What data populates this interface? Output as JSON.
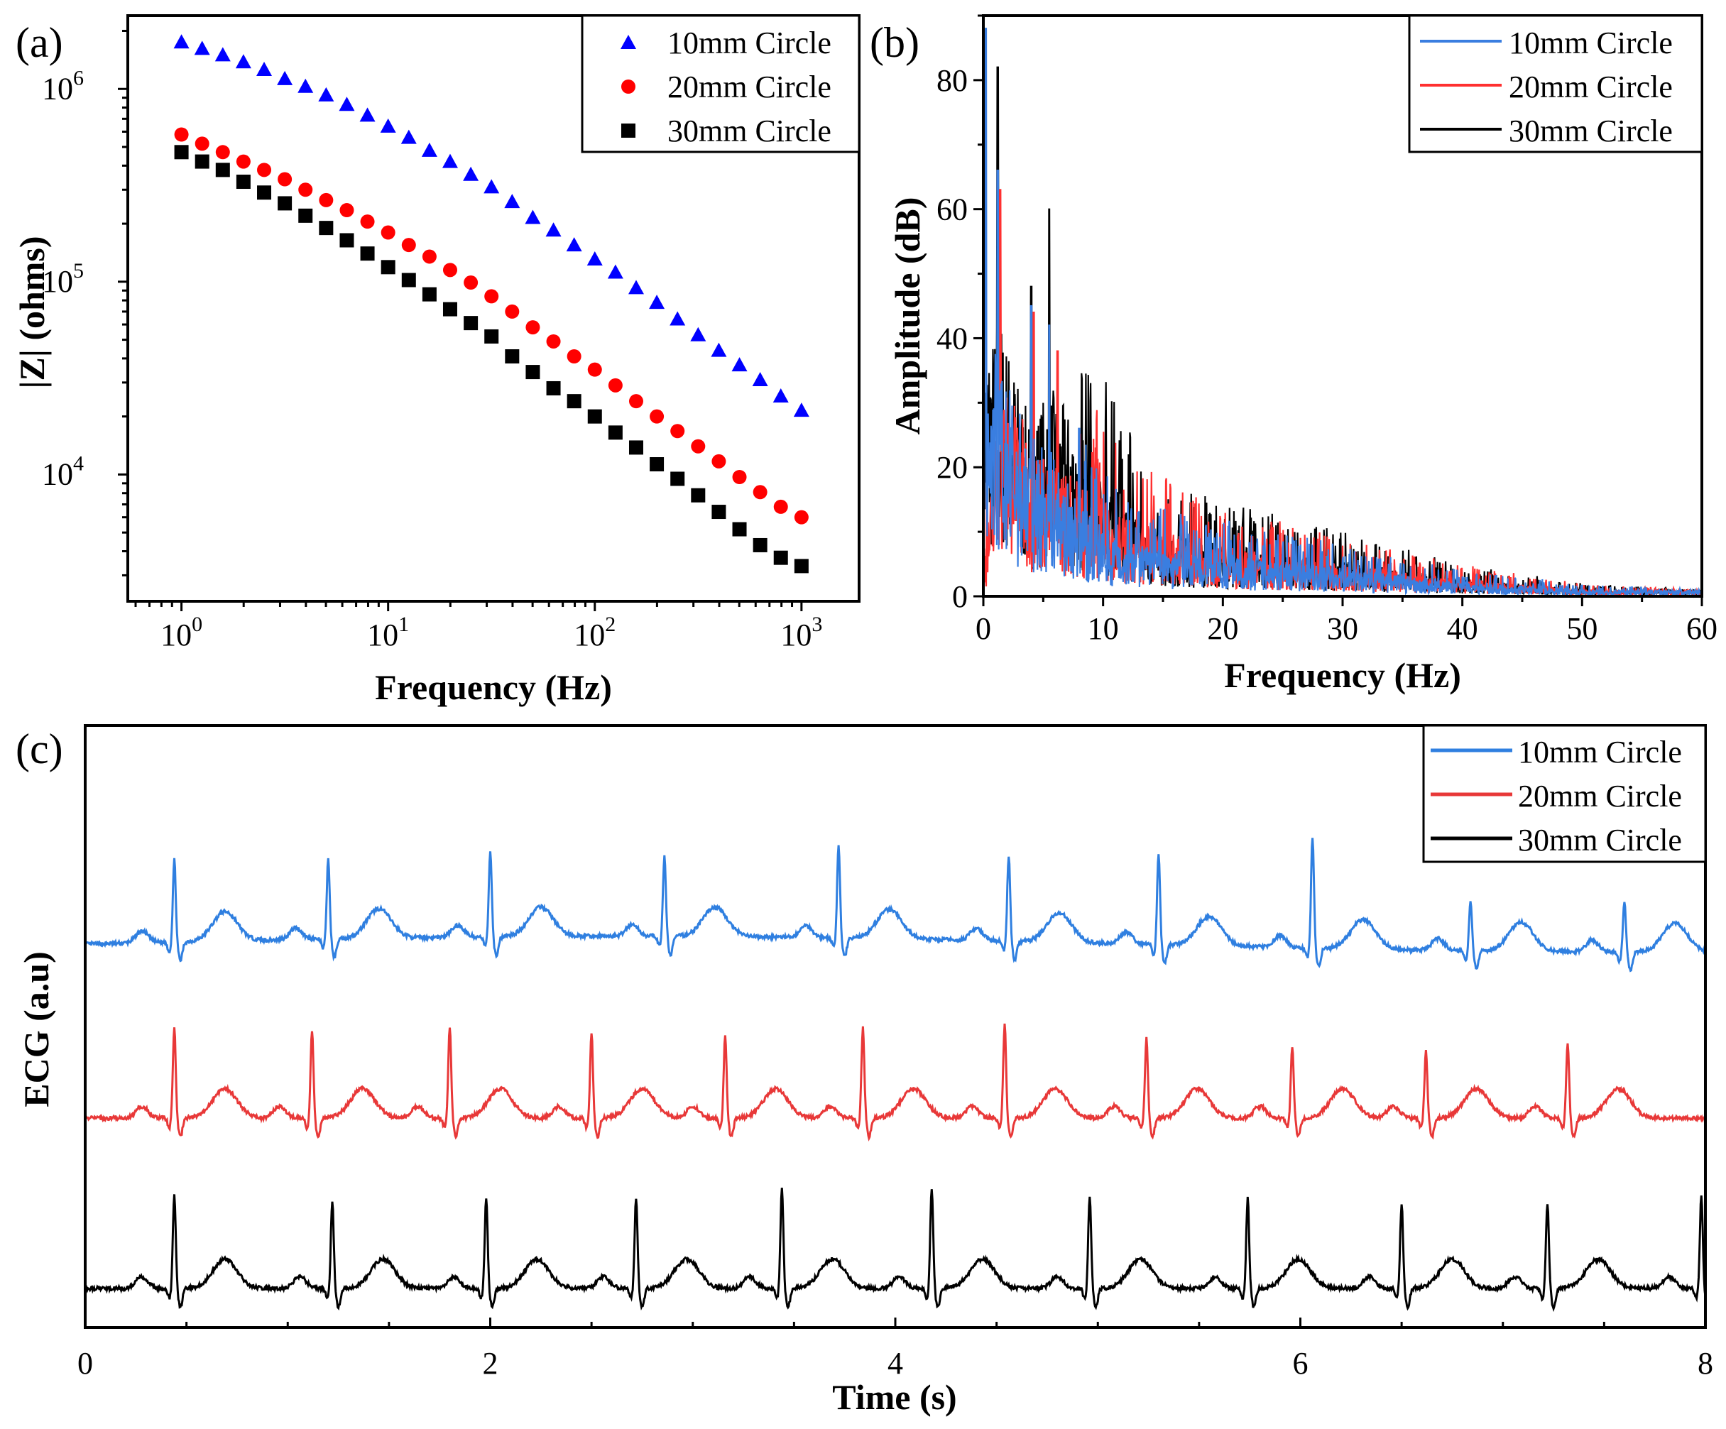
{
  "chart_data": [
    {
      "panel": "(a)",
      "type": "scatter",
      "xscale": "log",
      "yscale": "log",
      "xlabel": "Frequency (Hz)",
      "ylabel": "|Z| (ohms)",
      "xlim": [
        0.55,
        1900
      ],
      "ylim": [
        2200,
        2400000
      ],
      "xticks": [
        {
          "value": 1,
          "base": "10",
          "exp": "0"
        },
        {
          "value": 10,
          "base": "10",
          "exp": "1"
        },
        {
          "value": 100,
          "base": "10",
          "exp": "2"
        },
        {
          "value": 1000,
          "base": "10",
          "exp": "3"
        }
      ],
      "yticks": [
        {
          "value": 10000,
          "base": "10",
          "exp": "4"
        },
        {
          "value": 100000,
          "base": "10",
          "exp": "5"
        },
        {
          "value": 1000000,
          "base": "10",
          "exp": "6"
        }
      ],
      "legend_position": "top-right",
      "x": [
        1.0,
        1.259,
        1.585,
        1.995,
        2.512,
        3.162,
        3.981,
        5.012,
        6.31,
        7.943,
        10.0,
        12.59,
        15.85,
        19.95,
        25.12,
        31.62,
        39.81,
        50.12,
        63.1,
        79.43,
        100.0,
        125.9,
        158.5,
        199.5,
        251.2,
        316.2,
        398.1,
        501.2,
        631.0,
        794.3,
        1000.0
      ],
      "series": [
        {
          "name": "10mm Circle",
          "marker": "triangle",
          "color": "#0000ff",
          "values": [
            1750000,
            1620000,
            1500000,
            1380000,
            1260000,
            1130000,
            1030000,
            930000,
            830000,
            730000,
            640000,
            560000,
            480000,
            420000,
            360000,
            310000,
            260000,
            215000,
            185000,
            155000,
            131000,
            112000,
            93000,
            78000,
            64000,
            53000,
            44000,
            37000,
            31000,
            25500,
            21500
          ]
        },
        {
          "name": "20mm Circle",
          "marker": "circle",
          "color": "#ff0000",
          "values": [
            580000,
            520000,
            470000,
            420000,
            380000,
            340000,
            300000,
            265000,
            235000,
            205000,
            180000,
            155000,
            135000,
            115000,
            99000,
            84000,
            70000,
            58000,
            49000,
            41000,
            35000,
            29000,
            24000,
            20000,
            16800,
            14000,
            11700,
            9700,
            8100,
            6800,
            6000
          ]
        },
        {
          "name": "30mm Circle",
          "marker": "square",
          "color": "#000000",
          "values": [
            470000,
            420000,
            380000,
            330000,
            290000,
            255000,
            220000,
            190000,
            164000,
            140000,
            119000,
            102000,
            86000,
            72000,
            61000,
            52000,
            41000,
            34000,
            28000,
            24000,
            20000,
            16500,
            13800,
            11300,
            9500,
            7800,
            6400,
            5200,
            4300,
            3700,
            3350
          ]
        }
      ]
    },
    {
      "panel": "(b)",
      "type": "line",
      "xlabel": "Frequency (Hz)",
      "ylabel": "Amplitude (dB)",
      "xlim": [
        0,
        60
      ],
      "ylim": [
        0,
        90
      ],
      "xticks": [
        0,
        10,
        20,
        30,
        40,
        50,
        60
      ],
      "yticks": [
        0,
        20,
        40,
        60,
        80
      ],
      "legend_position": "top-right",
      "envelope_note": "noisy FFT spectra; envelope peaks listed as [Hz, dB]",
      "series": [
        {
          "name": "10mm Circle",
          "color": "#3a7ee0",
          "peaks": [
            [
              0.2,
              88
            ],
            [
              1.2,
              66
            ],
            [
              4.0,
              45
            ],
            [
              5.5,
              42
            ],
            [
              8.0,
              26
            ],
            [
              12,
              15
            ],
            [
              20,
              12
            ],
            [
              30,
              8
            ],
            [
              40,
              4
            ],
            [
              50,
              2
            ],
            [
              60,
              1
            ]
          ]
        },
        {
          "name": "20mm Circle",
          "color": "#ff3030",
          "peaks": [
            [
              0.3,
              20
            ],
            [
              1.4,
              63
            ],
            [
              4.2,
              44
            ],
            [
              6.2,
              38
            ],
            [
              12.5,
              21
            ],
            [
              20,
              14
            ],
            [
              30,
              9
            ],
            [
              40,
              5
            ],
            [
              50,
              2
            ],
            [
              60,
              1
            ]
          ]
        },
        {
          "name": "30mm Circle",
          "color": "#000000",
          "peaks": [
            [
              1.2,
              82
            ],
            [
              4.0,
              48
            ],
            [
              5.5,
              60
            ],
            [
              14,
              18
            ],
            [
              22,
              14
            ],
            [
              30,
              10
            ],
            [
              40,
              5
            ],
            [
              50,
              2
            ],
            [
              60,
              1
            ]
          ]
        }
      ]
    },
    {
      "panel": "(c)",
      "type": "line",
      "xlabel": "Time (s)",
      "ylabel": "ECG (a.u)",
      "xlim": [
        0,
        8
      ],
      "xticks": [
        0,
        2,
        4,
        6,
        8
      ],
      "legend_position": "top-right",
      "series": [
        {
          "name": "10mm Circle",
          "color": "#2f7fe0",
          "offset": 6.0,
          "r_peaks": [
            0.44,
            1.2,
            2.0,
            2.86,
            3.72,
            4.56,
            5.3,
            6.06,
            6.84,
            7.6
          ],
          "r_amplitudes": [
            1.55,
            1.5,
            1.6,
            1.5,
            1.75,
            1.6,
            1.7,
            2.1,
            0.95,
            0.95
          ]
        },
        {
          "name": "20mm Circle",
          "color": "#e83838",
          "offset": 3.0,
          "r_peaks": [
            0.44,
            1.12,
            1.8,
            2.5,
            3.16,
            3.84,
            4.54,
            5.24,
            5.96,
            6.62,
            7.32
          ],
          "r_amplitudes": [
            1.7,
            1.65,
            1.7,
            1.6,
            1.55,
            1.7,
            1.75,
            1.5,
            1.35,
            1.25,
            1.4
          ]
        },
        {
          "name": "30mm Circle",
          "color": "#000000",
          "offset": 0.0,
          "r_peaks": [
            0.44,
            1.22,
            1.98,
            2.72,
            3.44,
            4.18,
            4.96,
            5.74,
            6.5,
            7.22,
            7.98
          ],
          "r_amplitudes": [
            1.75,
            1.65,
            1.7,
            1.7,
            1.9,
            1.9,
            1.75,
            1.7,
            1.6,
            1.6,
            1.75
          ]
        }
      ]
    }
  ]
}
